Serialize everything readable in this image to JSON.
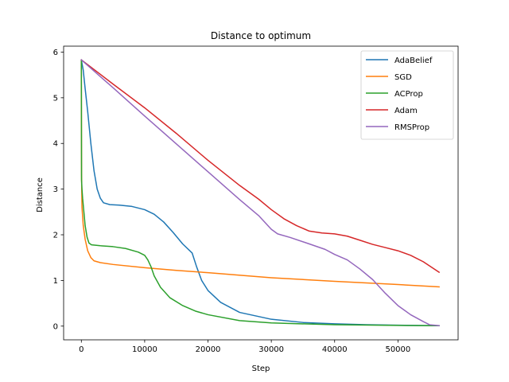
{
  "chart_data": {
    "type": "line",
    "title": "Distance to optimum",
    "xlabel": "Step",
    "ylabel": "Distance",
    "xlim": [
      -2800,
      59500
    ],
    "ylim": [
      -0.3,
      6.13
    ],
    "xticks": [
      0,
      10000,
      20000,
      30000,
      40000,
      50000
    ],
    "xtick_labels": [
      "0",
      "10000",
      "20000",
      "30000",
      "40000",
      "50000"
    ],
    "yticks": [
      0,
      1,
      2,
      3,
      4,
      5,
      6
    ],
    "ytick_labels": [
      "0",
      "1",
      "2",
      "3",
      "4",
      "5",
      "6"
    ],
    "grid": false,
    "legend_position": "top-right",
    "series": [
      {
        "name": "AdaBelief",
        "color": "#1f77b4",
        "points": [
          [
            0,
            5.83
          ],
          [
            300,
            5.6
          ],
          [
            600,
            5.2
          ],
          [
            1000,
            4.7
          ],
          [
            1500,
            4.0
          ],
          [
            2000,
            3.4
          ],
          [
            2500,
            3.0
          ],
          [
            3000,
            2.8
          ],
          [
            3500,
            2.7
          ],
          [
            4500,
            2.66
          ],
          [
            6000,
            2.65
          ],
          [
            8000,
            2.62
          ],
          [
            10000,
            2.55
          ],
          [
            11500,
            2.45
          ],
          [
            13000,
            2.28
          ],
          [
            14500,
            2.05
          ],
          [
            16000,
            1.8
          ],
          [
            17500,
            1.6
          ],
          [
            18200,
            1.3
          ],
          [
            19000,
            1.0
          ],
          [
            20000,
            0.78
          ],
          [
            22000,
            0.52
          ],
          [
            25000,
            0.3
          ],
          [
            30000,
            0.15
          ],
          [
            35000,
            0.08
          ],
          [
            40000,
            0.05
          ],
          [
            45000,
            0.03
          ],
          [
            50000,
            0.02
          ],
          [
            56500,
            0.01
          ]
        ]
      },
      {
        "name": "SGD",
        "color": "#ff7f0e",
        "points": [
          [
            0,
            5.83
          ],
          [
            30,
            3.3
          ],
          [
            100,
            2.6
          ],
          [
            300,
            2.2
          ],
          [
            600,
            1.9
          ],
          [
            1000,
            1.65
          ],
          [
            1500,
            1.5
          ],
          [
            2000,
            1.43
          ],
          [
            3000,
            1.39
          ],
          [
            5000,
            1.35
          ],
          [
            10000,
            1.28
          ],
          [
            15000,
            1.22
          ],
          [
            20000,
            1.17
          ],
          [
            30000,
            1.06
          ],
          [
            40000,
            0.98
          ],
          [
            50000,
            0.91
          ],
          [
            56500,
            0.86
          ]
        ]
      },
      {
        "name": "ACProp",
        "color": "#2ca02c",
        "points": [
          [
            0,
            5.83
          ],
          [
            30,
            3.2
          ],
          [
            100,
            3.0
          ],
          [
            200,
            2.8
          ],
          [
            400,
            2.5
          ],
          [
            600,
            2.2
          ],
          [
            900,
            1.95
          ],
          [
            1200,
            1.82
          ],
          [
            1600,
            1.78
          ],
          [
            3000,
            1.76
          ],
          [
            5000,
            1.74
          ],
          [
            7000,
            1.7
          ],
          [
            9000,
            1.62
          ],
          [
            10000,
            1.55
          ],
          [
            10500,
            1.45
          ],
          [
            11000,
            1.3
          ],
          [
            11500,
            1.1
          ],
          [
            12500,
            0.85
          ],
          [
            14000,
            0.62
          ],
          [
            16000,
            0.45
          ],
          [
            18000,
            0.33
          ],
          [
            20000,
            0.25
          ],
          [
            25000,
            0.12
          ],
          [
            30000,
            0.07
          ],
          [
            40000,
            0.03
          ],
          [
            50000,
            0.015
          ],
          [
            56500,
            0.01
          ]
        ]
      },
      {
        "name": "Adam",
        "color": "#d62728",
        "points": [
          [
            0,
            5.83
          ],
          [
            5000,
            5.3
          ],
          [
            10000,
            4.78
          ],
          [
            15000,
            4.22
          ],
          [
            20000,
            3.63
          ],
          [
            25000,
            3.08
          ],
          [
            28000,
            2.78
          ],
          [
            30000,
            2.55
          ],
          [
            32000,
            2.35
          ],
          [
            34000,
            2.2
          ],
          [
            36000,
            2.08
          ],
          [
            38000,
            2.04
          ],
          [
            40000,
            2.02
          ],
          [
            42000,
            1.97
          ],
          [
            44000,
            1.88
          ],
          [
            46000,
            1.79
          ],
          [
            48000,
            1.72
          ],
          [
            50000,
            1.65
          ],
          [
            52000,
            1.55
          ],
          [
            54000,
            1.41
          ],
          [
            56500,
            1.18
          ]
        ]
      },
      {
        "name": "RMSProp",
        "color": "#9467bd",
        "points": [
          [
            0,
            5.83
          ],
          [
            5000,
            5.22
          ],
          [
            10000,
            4.6
          ],
          [
            15000,
            3.99
          ],
          [
            20000,
            3.38
          ],
          [
            25000,
            2.77
          ],
          [
            28000,
            2.42
          ],
          [
            30000,
            2.12
          ],
          [
            31000,
            2.02
          ],
          [
            33000,
            1.94
          ],
          [
            36000,
            1.8
          ],
          [
            38500,
            1.68
          ],
          [
            40000,
            1.57
          ],
          [
            42000,
            1.45
          ],
          [
            44000,
            1.25
          ],
          [
            46000,
            1.02
          ],
          [
            48000,
            0.72
          ],
          [
            50000,
            0.45
          ],
          [
            52000,
            0.25
          ],
          [
            54000,
            0.1
          ],
          [
            55000,
            0.03
          ],
          [
            56500,
            0.01
          ]
        ]
      }
    ]
  }
}
